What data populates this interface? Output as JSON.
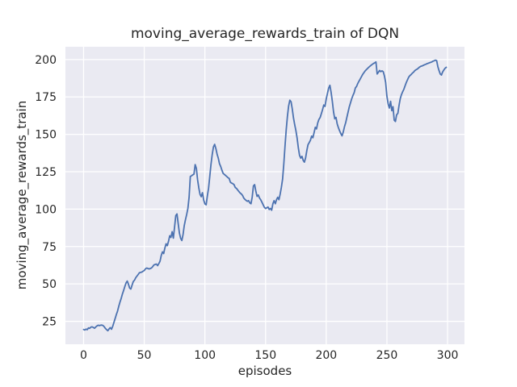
{
  "figure": {
    "background": "#FFFFFF"
  },
  "chart_data": {
    "type": "line",
    "title": "moving_average_rewards_train of DQN",
    "xlabel": "episodes",
    "ylabel": "moving_average_rewards_train",
    "x_ticks": [
      0,
      50,
      100,
      150,
      200,
      250,
      300
    ],
    "y_ticks": [
      25,
      50,
      75,
      100,
      125,
      150,
      175,
      200
    ],
    "xlim": [
      -14.95,
      313.95
    ],
    "ylim": [
      9.66,
      208.54
    ],
    "grid": true,
    "legend_position": "none",
    "style": {
      "axes_background": "#EAEAF2",
      "grid_color": "#FFFFFF",
      "line_color": "#4C72B0",
      "text_color": "#262626"
    },
    "series": [
      {
        "name": "moving_average_rewards_train",
        "color": "#4C72B0",
        "points": [
          [
            0,
            19.5
          ],
          [
            1,
            19.2
          ],
          [
            2,
            19.8
          ],
          [
            3,
            19.4
          ],
          [
            4,
            20.6
          ],
          [
            5,
            20.3
          ],
          [
            6,
            21.1
          ],
          [
            7,
            21.3
          ],
          [
            8,
            20.9
          ],
          [
            9,
            20.4
          ],
          [
            10,
            21.2
          ],
          [
            11,
            21.9
          ],
          [
            12,
            22.4
          ],
          [
            13,
            22.1
          ],
          [
            14,
            22.4
          ],
          [
            15,
            22.5
          ],
          [
            16,
            22.2
          ],
          [
            17,
            21.4
          ],
          [
            18,
            20.2
          ],
          [
            19,
            19.4
          ],
          [
            20,
            18.7
          ],
          [
            21,
            19.9
          ],
          [
            22,
            20.8
          ],
          [
            23,
            19.7
          ],
          [
            24,
            21.6
          ],
          [
            25,
            24.2
          ],
          [
            26,
            26.8
          ],
          [
            27,
            29.5
          ],
          [
            28,
            31.8
          ],
          [
            29,
            35.0
          ],
          [
            30,
            37.8
          ],
          [
            31,
            40.3
          ],
          [
            32,
            43.2
          ],
          [
            33,
            45.6
          ],
          [
            34,
            48.2
          ],
          [
            35,
            50.6
          ],
          [
            36,
            51.9
          ],
          [
            37,
            49.8
          ],
          [
            38,
            47.2
          ],
          [
            39,
            46.6
          ],
          [
            40,
            49.2
          ],
          [
            41,
            51.6
          ],
          [
            42,
            52.5
          ],
          [
            43,
            54.1
          ],
          [
            44,
            55.2
          ],
          [
            45,
            56.3
          ],
          [
            46,
            57.4
          ],
          [
            47,
            57.7
          ],
          [
            48,
            57.9
          ],
          [
            49,
            58.5
          ],
          [
            50,
            59.0
          ],
          [
            51,
            60.1
          ],
          [
            52,
            60.6
          ],
          [
            53,
            60.3
          ],
          [
            54,
            60.0
          ],
          [
            55,
            60.3
          ],
          [
            56,
            60.7
          ],
          [
            57,
            61.6
          ],
          [
            58,
            62.7
          ],
          [
            59,
            63.0
          ],
          [
            60,
            63.3
          ],
          [
            61,
            62.2
          ],
          [
            62,
            63.6
          ],
          [
            63,
            65.2
          ],
          [
            64,
            69.0
          ],
          [
            65,
            71.4
          ],
          [
            66,
            70.3
          ],
          [
            67,
            74.0
          ],
          [
            68,
            76.8
          ],
          [
            69,
            75.6
          ],
          [
            70,
            78.5
          ],
          [
            71,
            82.2
          ],
          [
            72,
            81.1
          ],
          [
            73,
            84.9
          ],
          [
            74,
            80.6
          ],
          [
            75,
            88.0
          ],
          [
            76,
            95.7
          ],
          [
            77,
            96.8
          ],
          [
            78,
            90.3
          ],
          [
            79,
            84.0
          ],
          [
            80,
            80.5
          ],
          [
            81,
            79.0
          ],
          [
            82,
            83.0
          ],
          [
            83,
            89.0
          ],
          [
            84,
            93.0
          ],
          [
            85,
            96.5
          ],
          [
            86,
            100.5
          ],
          [
            87,
            108.0
          ],
          [
            88,
            121.8
          ],
          [
            89,
            122.3
          ],
          [
            90,
            122.9
          ],
          [
            91,
            123.4
          ],
          [
            92,
            129.8
          ],
          [
            93,
            127.2
          ],
          [
            94,
            119.6
          ],
          [
            95,
            114.2
          ],
          [
            96,
            109.9
          ],
          [
            97,
            108.3
          ],
          [
            98,
            111.0
          ],
          [
            99,
            106.0
          ],
          [
            100,
            103.5
          ],
          [
            101,
            102.9
          ],
          [
            102,
            108.9
          ],
          [
            103,
            114.0
          ],
          [
            104,
            122.0
          ],
          [
            105,
            130.0
          ],
          [
            106,
            136.5
          ],
          [
            107,
            141.5
          ],
          [
            108,
            143.3
          ],
          [
            109,
            140.6
          ],
          [
            110,
            136.8
          ],
          [
            111,
            134.1
          ],
          [
            112,
            130.4
          ],
          [
            113,
            128.5
          ],
          [
            114,
            126.1
          ],
          [
            115,
            123.9
          ],
          [
            116,
            123.2
          ],
          [
            117,
            122.5
          ],
          [
            118,
            121.8
          ],
          [
            119,
            121.0
          ],
          [
            120,
            120.5
          ],
          [
            121,
            118.0
          ],
          [
            122,
            117.4
          ],
          [
            123,
            117.0
          ],
          [
            124,
            116.4
          ],
          [
            125,
            114.5
          ],
          [
            126,
            113.9
          ],
          [
            127,
            112.8
          ],
          [
            128,
            111.8
          ],
          [
            129,
            110.8
          ],
          [
            130,
            110.2
          ],
          [
            131,
            109.2
          ],
          [
            132,
            107.5
          ],
          [
            133,
            106.5
          ],
          [
            134,
            105.8
          ],
          [
            135,
            105.2
          ],
          [
            136,
            105.7
          ],
          [
            137,
            104.2
          ],
          [
            138,
            103.6
          ],
          [
            139,
            108.0
          ],
          [
            140,
            115.5
          ],
          [
            141,
            116.4
          ],
          [
            142,
            112.0
          ],
          [
            143,
            108.5
          ],
          [
            144,
            109.5
          ],
          [
            145,
            107.5
          ],
          [
            146,
            106.3
          ],
          [
            147,
            104.7
          ],
          [
            148,
            103.0
          ],
          [
            149,
            101.3
          ],
          [
            150,
            100.4
          ],
          [
            151,
            100.9
          ],
          [
            152,
            101.4
          ],
          [
            153,
            99.8
          ],
          [
            154,
            100.5
          ],
          [
            155,
            99.3
          ],
          [
            156,
            103.6
          ],
          [
            157,
            105.7
          ],
          [
            158,
            103.6
          ],
          [
            159,
            106.3
          ],
          [
            160,
            107.9
          ],
          [
            161,
            106.3
          ],
          [
            162,
            110.0
          ],
          [
            163,
            114.5
          ],
          [
            164,
            120.0
          ],
          [
            165,
            130.0
          ],
          [
            166,
            142.0
          ],
          [
            167,
            153.0
          ],
          [
            168,
            162.0
          ],
          [
            169,
            169.0
          ],
          [
            170,
            172.8
          ],
          [
            171,
            171.8
          ],
          [
            172,
            167.0
          ],
          [
            173,
            161.0
          ],
          [
            174,
            156.5
          ],
          [
            175,
            152.5
          ],
          [
            176,
            147.5
          ],
          [
            177,
            141.0
          ],
          [
            178,
            136.0
          ],
          [
            179,
            134.1
          ],
          [
            180,
            135.3
          ],
          [
            181,
            132.6
          ],
          [
            182,
            131.4
          ],
          [
            183,
            134.2
          ],
          [
            184,
            139.1
          ],
          [
            185,
            143.1
          ],
          [
            186,
            144.5
          ],
          [
            187,
            146.1
          ],
          [
            188,
            148.8
          ],
          [
            189,
            147.7
          ],
          [
            190,
            151.1
          ],
          [
            191,
            154.7
          ],
          [
            192,
            153.6
          ],
          [
            193,
            157.6
          ],
          [
            194,
            160.0
          ],
          [
            195,
            161.2
          ],
          [
            196,
            163.8
          ],
          [
            197,
            166.5
          ],
          [
            198,
            169.6
          ],
          [
            199,
            168.6
          ],
          [
            200,
            173.5
          ],
          [
            201,
            177.5
          ],
          [
            202,
            181.0
          ],
          [
            203,
            182.8
          ],
          [
            204,
            178.0
          ],
          [
            205,
            172.0
          ],
          [
            206,
            165.0
          ],
          [
            207,
            160.4
          ],
          [
            208,
            161.3
          ],
          [
            209,
            157.0
          ],
          [
            210,
            154.5
          ],
          [
            211,
            152.3
          ],
          [
            212,
            150.5
          ],
          [
            213,
            149.0
          ],
          [
            214,
            151.5
          ],
          [
            215,
            155.0
          ],
          [
            216,
            157.7
          ],
          [
            217,
            161.3
          ],
          [
            218,
            164.9
          ],
          [
            219,
            168.4
          ],
          [
            220,
            171.1
          ],
          [
            221,
            173.8
          ],
          [
            222,
            176.0
          ],
          [
            223,
            177.8
          ],
          [
            224,
            181.0
          ],
          [
            225,
            182.0
          ],
          [
            226,
            184.0
          ],
          [
            227,
            185.5
          ],
          [
            228,
            187.0
          ],
          [
            229,
            188.5
          ],
          [
            230,
            190.0
          ],
          [
            231,
            191.2
          ],
          [
            232,
            192.3
          ],
          [
            233,
            193.2
          ],
          [
            234,
            194.0
          ],
          [
            235,
            194.8
          ],
          [
            236,
            195.5
          ],
          [
            237,
            196.2
          ],
          [
            238,
            196.8
          ],
          [
            239,
            197.4
          ],
          [
            240,
            197.8
          ],
          [
            241,
            198.4
          ],
          [
            242,
            190.3
          ],
          [
            243,
            191.5
          ],
          [
            244,
            192.7
          ],
          [
            245,
            191.9
          ],
          [
            246,
            192.4
          ],
          [
            247,
            191.9
          ],
          [
            248,
            189.0
          ],
          [
            249,
            184.7
          ],
          [
            250,
            175.7
          ],
          [
            251,
            170.3
          ],
          [
            252,
            167.6
          ],
          [
            253,
            172.1
          ],
          [
            254,
            165.8
          ],
          [
            255,
            168.5
          ],
          [
            256,
            159.5
          ],
          [
            257,
            158.6
          ],
          [
            258,
            163.1
          ],
          [
            259,
            164.0
          ],
          [
            260,
            169.4
          ],
          [
            261,
            173.9
          ],
          [
            262,
            176.6
          ],
          [
            263,
            178.5
          ],
          [
            264,
            180.2
          ],
          [
            265,
            182.5
          ],
          [
            266,
            184.7
          ],
          [
            267,
            186.5
          ],
          [
            268,
            188.3
          ],
          [
            269,
            189.3
          ],
          [
            270,
            190.0
          ],
          [
            271,
            190.9
          ],
          [
            272,
            191.6
          ],
          [
            273,
            192.6
          ],
          [
            274,
            193.2
          ],
          [
            275,
            193.6
          ],
          [
            276,
            194.3
          ],
          [
            277,
            195.0
          ],
          [
            278,
            195.5
          ],
          [
            279,
            195.7
          ],
          [
            280,
            196.1
          ],
          [
            281,
            196.5
          ],
          [
            282,
            196.8
          ],
          [
            283,
            197.2
          ],
          [
            284,
            197.5
          ],
          [
            285,
            197.8
          ],
          [
            286,
            198.1
          ],
          [
            287,
            198.4
          ],
          [
            288,
            198.9
          ],
          [
            289,
            199.2
          ],
          [
            290,
            199.6
          ],
          [
            291,
            199.3
          ],
          [
            292,
            195.3
          ],
          [
            293,
            192.6
          ],
          [
            294,
            190.3
          ],
          [
            295,
            189.6
          ],
          [
            296,
            191.8
          ],
          [
            297,
            193.0
          ],
          [
            298,
            194.2
          ],
          [
            299,
            194.8
          ]
        ]
      }
    ]
  }
}
